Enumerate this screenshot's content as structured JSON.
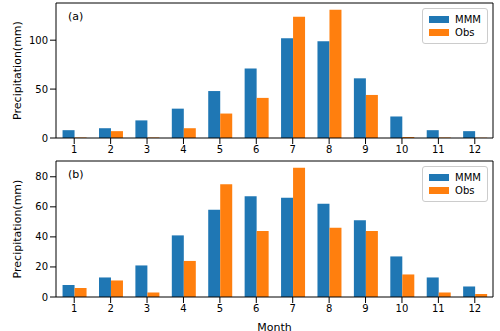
{
  "chart_data": [
    {
      "type": "bar",
      "title": "(a)",
      "y_label": "Precipitation(mm)",
      "categories": [
        "1",
        "2",
        "3",
        "4",
        "5",
        "6",
        "7",
        "8",
        "9",
        "10",
        "11",
        "12"
      ],
      "series": [
        {
          "name": "MMM",
          "color": "#1f77b4",
          "values": [
            8,
            10,
            18,
            30,
            48,
            71,
            102,
            99,
            61,
            22,
            8,
            7
          ]
        },
        {
          "name": "Obs",
          "color": "#ff7f0e",
          "values": [
            0.5,
            7,
            0.5,
            10,
            25,
            41,
            124,
            131,
            44,
            1,
            0.5,
            0.3
          ]
        }
      ],
      "ylim": [
        0,
        138
      ],
      "yticks": [
        0,
        50,
        100
      ],
      "grid": false,
      "legend": "upper right"
    },
    {
      "type": "bar",
      "title": "(b)",
      "y_label": "Precipitation(mm)",
      "x_label": "Month",
      "categories": [
        "1",
        "2",
        "3",
        "4",
        "5",
        "6",
        "7",
        "8",
        "9",
        "10",
        "11",
        "12"
      ],
      "series": [
        {
          "name": "MMM",
          "color": "#1f77b4",
          "values": [
            8,
            13,
            21,
            41,
            58,
            67,
            66,
            62,
            51,
            27,
            13,
            7
          ]
        },
        {
          "name": "Obs",
          "color": "#ff7f0e",
          "values": [
            6,
            11,
            3,
            24,
            75,
            44,
            86,
            46,
            44,
            15,
            3,
            2
          ]
        }
      ],
      "ylim": [
        0,
        90.5
      ],
      "yticks": [
        0,
        20,
        40,
        60,
        80
      ],
      "grid": false,
      "legend": "upper right"
    }
  ]
}
